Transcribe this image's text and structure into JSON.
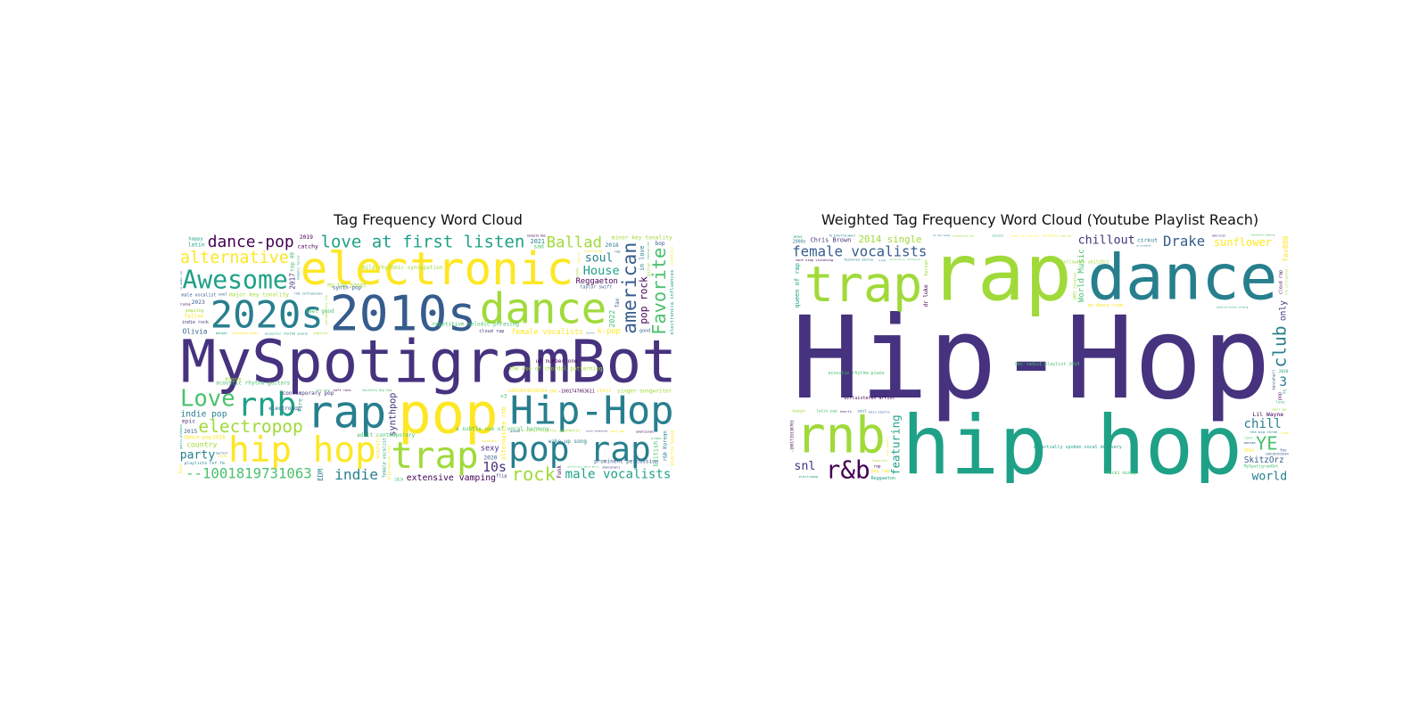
{
  "palette": [
    "#440154",
    "#46327e",
    "#365c8d",
    "#277f8e",
    "#1fa187",
    "#4ac16d",
    "#a0da39",
    "#fde725"
  ],
  "chart_data": [
    {
      "type": "wordcloud",
      "title": "Tag Frequency Word Cloud",
      "words": [
        {
          "text": "MySpotigramBot",
          "weight": 100
        },
        {
          "text": "pop",
          "weight": 95
        },
        {
          "text": "2010s",
          "weight": 85
        },
        {
          "text": "electronic",
          "weight": 80
        },
        {
          "text": "rap",
          "weight": 78
        },
        {
          "text": "dance",
          "weight": 75
        },
        {
          "text": "Hip-Hop",
          "weight": 70
        },
        {
          "text": "2020s",
          "weight": 68
        },
        {
          "text": "trap",
          "weight": 66
        },
        {
          "text": "hip hop",
          "weight": 64
        },
        {
          "text": "pop rap",
          "weight": 62
        },
        {
          "text": "rnb",
          "weight": 60
        },
        {
          "text": "Awesome",
          "weight": 55
        },
        {
          "text": "love at first listen",
          "weight": 52
        },
        {
          "text": "american",
          "weight": 50
        },
        {
          "text": "Favorite",
          "weight": 48
        },
        {
          "text": "Love",
          "weight": 44
        },
        {
          "text": "electropop",
          "weight": 40
        },
        {
          "text": "alternative",
          "weight": 38
        },
        {
          "text": "rock",
          "weight": 36
        },
        {
          "text": "indie",
          "weight": 34
        },
        {
          "text": "--1001819731063",
          "weight": 33
        },
        {
          "text": "dance-pop",
          "weight": 32
        },
        {
          "text": "Ballad",
          "weight": 31
        },
        {
          "text": "male vocalists",
          "weight": 30
        },
        {
          "text": "extensive vamping",
          "weight": 29
        },
        {
          "text": "female vocalists",
          "weight": 29
        },
        {
          "text": "pop rock",
          "weight": 28
        },
        {
          "text": "10s",
          "weight": 27
        },
        {
          "text": "House",
          "weight": 25
        },
        {
          "text": "soul",
          "weight": 24
        },
        {
          "text": "party",
          "weight": 24
        },
        {
          "text": "electronica influences",
          "weight": 23
        },
        {
          "text": "major key tonality",
          "weight": 22
        },
        {
          "text": "indie pop",
          "weight": 21
        },
        {
          "text": "-1001854528204",
          "weight": 20
        },
        {
          "text": "-1001747063611",
          "weight": 20
        },
        {
          "text": "synthpop",
          "weight": 19
        },
        {
          "text": "adult contemporary",
          "weight": 19
        },
        {
          "text": "singer-songwriter",
          "weight": 18
        },
        {
          "text": "a subtle use of vocal harmony",
          "weight": 18
        },
        {
          "text": "alternative rnb",
          "weight": 17
        },
        {
          "text": "sexy",
          "weight": 16
        },
        {
          "text": "k-pop",
          "weight": 16
        },
        {
          "text": "minor key tonality",
          "weight": 16
        },
        {
          "text": "Reggaeton",
          "weight": 16
        },
        {
          "text": "country",
          "weight": 15
        },
        {
          "text": "female vocalist",
          "weight": 15
        },
        {
          "text": "indie rock",
          "weight": 15
        },
        {
          "text": "taylor swift",
          "weight": 15
        },
        {
          "text": "male vocalist",
          "weight": 15
        },
        {
          "text": "2022",
          "weight": 15
        },
        {
          "text": "2017",
          "weight": 14
        },
        {
          "text": "EDM",
          "weight": 14
        },
        {
          "text": "catchy",
          "weight": 14
        },
        {
          "text": "Olivia",
          "weight": 14
        },
        {
          "text": "playlista ref fm",
          "weight": 14
        },
        {
          "text": "cloud rap",
          "weight": 13
        },
        {
          "text": "acoustic rhythm piano",
          "weight": 13
        },
        {
          "text": "a vocal-centric aesthetic",
          "weight": 13
        },
        {
          "text": "mild rhythmic syncopation",
          "weight": 13
        },
        {
          "text": "rnb influences",
          "weight": 13
        },
        {
          "text": "r&b Korean",
          "weight": 12
        },
        {
          "text": "Southern Hip Hop",
          "weight": 12
        },
        {
          "text": "beautiful",
          "weight": 12
        },
        {
          "text": "amazing",
          "weight": 12
        },
        {
          "text": "alternative rock",
          "weight": 12
        },
        {
          "text": "contemporary r&b",
          "weight": 12
        },
        {
          "text": "dance pop",
          "weight": 12
        },
        {
          "text": "british",
          "weight": 12
        },
        {
          "text": "2021",
          "weight": 12
        },
        {
          "text": "in love",
          "weight": 12
        },
        {
          "text": "2023",
          "weight": 11
        },
        {
          "text": "2018",
          "weight": 11
        },
        {
          "text": "2019",
          "weight": 11
        },
        {
          "text": "2015",
          "weight": 11
        },
        {
          "text": "2020",
          "weight": 11
        },
        {
          "text": "sad",
          "weight": 11
        },
        {
          "text": "latin",
          "weight": 11
        },
        {
          "text": "fire",
          "weight": 11
        },
        {
          "text": "happy",
          "weight": 11
        },
        {
          "text": "chill",
          "weight": 11
        },
        {
          "text": "epic",
          "weight": 11
        },
        {
          "text": "<3",
          "weight": 11
        },
        {
          "text": "bop",
          "weight": 10
        },
        {
          "text": "alt-pop",
          "weight": 10
        },
        {
          "text": "electro house",
          "weight": 10
        },
        {
          "text": "soft rock",
          "weight": 10
        },
        {
          "text": "fallon",
          "weight": 10
        },
        {
          "text": "latin pop",
          "weight": 10
        },
        {
          "text": "fav",
          "weight": 10
        },
        {
          "text": "flip",
          "weight": 10
        },
        {
          "text": "emotional",
          "weight": 10
        },
        {
          "text": "overrated",
          "weight": 10
        },
        {
          "text": "nostalgia",
          "weight": 10
        },
        {
          "text": "top 40",
          "weight": 10
        },
        {
          "text": "guilty pleasure",
          "weight": 10
        },
        {
          "text": "electronic dance music",
          "weight": 10
        },
        {
          "text": "syncopated beats",
          "weight": 10
        },
        {
          "text": "wake-up song",
          "weight": 10
        },
        {
          "text": "dancehall",
          "weight": 10
        },
        {
          "text": "soundtrack",
          "weight": 10
        },
        {
          "text": "favourite",
          "weight": 10
        },
        {
          "text": "Gangsta Rap",
          "weight": 10
        },
        {
          "text": "2016",
          "weight": 10
        },
        {
          "text": "2024",
          "weight": 10
        },
        {
          "text": "english",
          "weight": 10
        },
        {
          "text": "vocal harmonies",
          "weight": 10
        },
        {
          "text": "prominent percussion",
          "weight": 10
        },
        {
          "text": "the use of chordal patterning",
          "weight": 10
        },
        {
          "text": "romantic lyrics",
          "weight": 10
        },
        {
          "text": "repetitive melodic phrasing",
          "weight": 10
        },
        {
          "text": "us number one",
          "weight": 10
        },
        {
          "text": "uk number one",
          "weight": 10
        },
        {
          "text": "acoustic rhythm guitars",
          "weight": 10
        },
        {
          "text": "electropop",
          "weight": 10
        },
        {
          "text": "synth-pop",
          "weight": 10
        },
        {
          "text": "perfect",
          "weight": 10
        },
        {
          "text": "love it",
          "weight": 10
        },
        {
          "text": "banger",
          "weight": 10
        },
        {
          "text": "piano",
          "weight": 10
        },
        {
          "text": "Funk",
          "weight": 10
        },
        {
          "text": "Kanye",
          "weight": 10
        },
        {
          "text": "feel good",
          "weight": 10
        },
        {
          "text": "guitar",
          "weight": 10
        },
        {
          "text": "lyrics",
          "weight": 10
        },
        {
          "text": "urban",
          "weight": 10
        },
        {
          "text": "hiphop",
          "weight": 10
        },
        {
          "text": "emo",
          "weight": 10
        },
        {
          "text": "my top songs",
          "weight": 10
        },
        {
          "text": "contemporary pop",
          "weight": 10
        },
        {
          "text": "2000s",
          "weight": 10
        },
        {
          "text": "boss",
          "weight": 10
        },
        {
          "text": "soul",
          "weight": 10
        },
        {
          "text": "good",
          "weight": 10
        },
        {
          "text": "2010s",
          "weight": 10
        },
        {
          "text": "r&b",
          "weight": 10
        }
      ]
    },
    {
      "type": "wordcloud",
      "title": "Weighted Tag Frequency Word Cloud (Youtube Playlist Reach)",
      "words": [
        {
          "text": "Hip-Hop",
          "weight": 100
        },
        {
          "text": "rap",
          "weight": 97
        },
        {
          "text": "hip hop",
          "weight": 70
        },
        {
          "text": "dance",
          "weight": 66
        },
        {
          "text": "trap",
          "weight": 62
        },
        {
          "text": "rnb",
          "weight": 56
        },
        {
          "text": "r&b",
          "weight": 54
        },
        {
          "text": "female vocalists",
          "weight": 30
        },
        {
          "text": "Drake",
          "weight": 30
        },
        {
          "text": "sunflower",
          "weight": 28
        },
        {
          "text": "chillout",
          "weight": 30
        },
        {
          "text": "chill",
          "weight": 28
        },
        {
          "text": "2014 single",
          "weight": 29
        },
        {
          "text": "club",
          "weight": 28
        },
        {
          "text": "featuring",
          "weight": 26
        },
        {
          "text": "SkitzOrz",
          "weight": 24
        },
        {
          "text": "World Music",
          "weight": 26
        },
        {
          "text": "holloween skitzOrz",
          "weight": 22
        },
        {
          "text": "YE",
          "weight": 26
        },
        {
          "text": "uitluisteren artist",
          "weight": 22
        },
        {
          "text": "nicki minaj",
          "weight": 21
        },
        {
          "text": "my dance room",
          "weight": 21
        },
        {
          "text": "queen of rap",
          "weight": 20
        },
        {
          "text": "world",
          "weight": 22
        },
        {
          "text": "Chris Brown",
          "weight": 22
        },
        {
          "text": "Lil Wayne",
          "weight": 21
        },
        {
          "text": "cirkut",
          "weight": 21
        },
        {
          "text": "fav888",
          "weight": 20
        },
        {
          "text": "dr luke",
          "weight": 20
        },
        {
          "text": "only",
          "weight": 20
        },
        {
          "text": "3",
          "weight": 21
        },
        {
          "text": "snl",
          "weight": 20
        },
        {
          "text": "the big three",
          "weight": 14
        },
        {
          "text": "cant stop listening",
          "weight": 15
        },
        {
          "text": "MySpotigramBot",
          "weight": 14
        },
        {
          "text": "latin pop",
          "weight": 12
        },
        {
          "text": "Reggaeton",
          "weight": 12
        },
        {
          "text": "latin electro",
          "weight": 12
        },
        {
          "text": "featured chorus",
          "weight": 12
        },
        {
          "text": "-1001854528204",
          "weight": 11
        },
        {
          "text": "major key tonality",
          "weight": 11
        },
        {
          "text": "Korean",
          "weight": 10
        },
        {
          "text": "YG Entertainment",
          "weight": 10
        },
        {
          "text": "electropop",
          "weight": 10
        },
        {
          "text": "cloud rap",
          "weight": 10
        },
        {
          "text": "repetitive melodic phrasing",
          "weight": 10
        },
        {
          "text": "contemporary pop",
          "weight": 10
        },
        {
          "text": "electronica influences",
          "weight": 10
        },
        {
          "text": "extensive vamping",
          "weight": 10
        },
        {
          "text": "a partially spoken vocal delivery",
          "weight": 10
        },
        {
          "text": "acoustic rhythm piano",
          "weight": 10
        },
        {
          "text": "my scrobbled",
          "weight": 10
        },
        {
          "text": "Favorite",
          "weight": 10
        },
        {
          "text": "pop",
          "weight": 10
        },
        {
          "text": "pop rap",
          "weight": 10
        },
        {
          "text": "best gg",
          "weight": 10
        },
        {
          "text": "2000s",
          "weight": 10
        },
        {
          "text": "2014",
          "weight": 10
        },
        {
          "text": "2020",
          "weight": 10
        },
        {
          "text": "2001 Singles",
          "weight": 10
        },
        {
          "text": "colours",
          "weight": 10
        },
        {
          "text": "ft",
          "weight": 10
        },
        {
          "text": "fav",
          "weight": 10
        },
        {
          "text": "love",
          "weight": 10
        },
        {
          "text": "banger",
          "weight": 10
        },
        {
          "text": "hearts",
          "weight": 10
        },
        {
          "text": "rnb influences",
          "weight": 10
        },
        {
          "text": "JMIKE",
          "weight": 10
        },
        {
          "text": "american",
          "weight": 10
        },
        {
          "text": "awesome",
          "weight": 10
        },
        {
          "text": "calm",
          "weight": 10
        },
        {
          "text": "Like",
          "weight": 10
        },
        {
          "text": "my top songs",
          "weight": 10
        },
        {
          "text": "bbc radio1 playlist 2014",
          "weight": 10
        },
        {
          "text": "-1001719338703",
          "weight": 10
        },
        {
          "text": "k-pop",
          "weight": 10
        },
        {
          "text": "dancehall",
          "weight": 10
        },
        {
          "text": "singer-songwriter",
          "weight": 10
        },
        {
          "text": "electronic",
          "weight": 10
        },
        {
          "text": "soul",
          "weight": 10
        },
        {
          "text": "rap",
          "weight": 10
        },
        {
          "text": "indie pop",
          "weight": 10
        }
      ]
    }
  ]
}
